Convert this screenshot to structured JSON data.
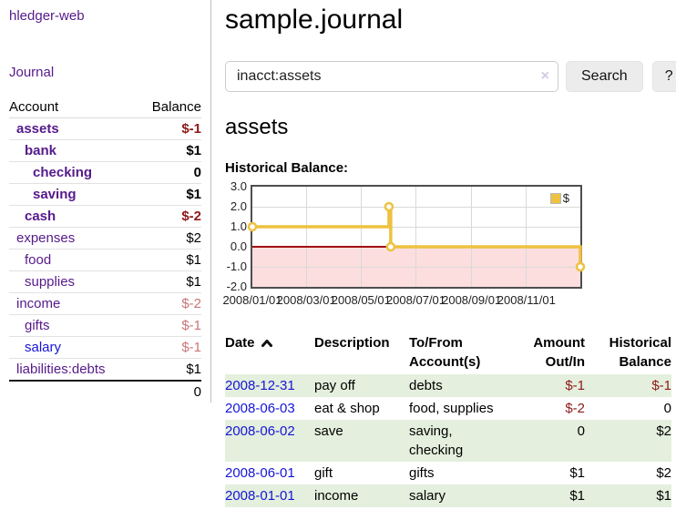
{
  "app": {
    "brand": "hledger-web",
    "nav_journal": "Journal"
  },
  "sidebar": {
    "table": {
      "col_account": "Account",
      "col_balance": "Balance"
    },
    "accounts": [
      {
        "name": "assets",
        "balance": "$-1",
        "depth": 1,
        "match": true,
        "balance_class": "neg-strong"
      },
      {
        "name": "bank",
        "balance": "$1",
        "depth": 2,
        "match": true,
        "balance_class": ""
      },
      {
        "name": "checking",
        "balance": "0",
        "depth": 3,
        "match": true,
        "balance_class": ""
      },
      {
        "name": "saving",
        "balance": "$1",
        "depth": 3,
        "match": true,
        "balance_class": ""
      },
      {
        "name": "cash",
        "balance": "$-2",
        "depth": 2,
        "match": true,
        "balance_class": "neg-strong"
      },
      {
        "name": "expenses",
        "balance": "$2",
        "depth": 1,
        "match": false,
        "balance_class": ""
      },
      {
        "name": "food",
        "balance": "$1",
        "depth": 2,
        "match": false,
        "balance_class": ""
      },
      {
        "name": "supplies",
        "balance": "$1",
        "depth": 2,
        "match": false,
        "balance_class": ""
      },
      {
        "name": "income",
        "balance": "$-2",
        "depth": 1,
        "match": false,
        "balance_class": "neg-soft"
      },
      {
        "name": "gifts",
        "balance": "$-1",
        "depth": 2,
        "match": false,
        "balance_class": "neg-soft"
      },
      {
        "name": "salary",
        "balance": "$-1",
        "depth": 2,
        "match": false,
        "balance_class": "neg-soft",
        "unvisited": true
      },
      {
        "name": "liabilities:debts",
        "balance": "$1",
        "depth": 1,
        "match": false,
        "balance_class": ""
      }
    ],
    "total": "0"
  },
  "main": {
    "title": "sample.journal",
    "search": {
      "value": "inacct:assets",
      "clear_label": "×",
      "button_label": "Search",
      "help_label": "?"
    },
    "account_heading": "assets",
    "chart_label": "Historical Balance:"
  },
  "chart_data": {
    "type": "line",
    "title": "Historical Balance:",
    "series": [
      {
        "name": "$",
        "color": "#edc240",
        "step": true,
        "points": [
          [
            "2008-01-01",
            1
          ],
          [
            "2008-06-01",
            2
          ],
          [
            "2008-06-03",
            0
          ],
          [
            "2008-12-31",
            -1
          ]
        ]
      }
    ],
    "x_ticks": [
      "2008/01/01",
      "2008/03/01",
      "2008/05/01",
      "2008/07/01",
      "2008/09/01",
      "2008/11/01"
    ],
    "y_ticks": [
      3,
      2,
      1,
      0,
      -1,
      -2
    ],
    "xlim": [
      "2008-01-01",
      "2008-12-31"
    ],
    "ylim": [
      -2,
      3
    ],
    "grid": true,
    "legend_position": "top-right",
    "negative_region_color": "#fcdede",
    "zero_line_color": "#a21010"
  },
  "register": {
    "headers": {
      "date": "Date",
      "description": "Description",
      "accounts": "To/From Account(s)",
      "amount": "Amount Out/In",
      "balance": "Historical Balance"
    },
    "sort": {
      "column": "date",
      "direction": "asc",
      "icon": "chevron-up-icon"
    },
    "rows": [
      {
        "date": "2008-12-31",
        "description": "pay off",
        "accounts": "debts",
        "amount": "$-1",
        "amount_class": "neg",
        "balance": "$-1",
        "balance_class": "neg"
      },
      {
        "date": "2008-06-03",
        "description": "eat & shop",
        "accounts": "food, supplies",
        "amount": "$-2",
        "amount_class": "neg",
        "balance": "0",
        "balance_class": ""
      },
      {
        "date": "2008-06-02",
        "description": "save",
        "accounts": "saving, checking",
        "amount": "0",
        "amount_class": "",
        "balance": "$2",
        "balance_class": ""
      },
      {
        "date": "2008-06-01",
        "description": "gift",
        "accounts": "gifts",
        "amount": "$1",
        "amount_class": "",
        "balance": "$2",
        "balance_class": ""
      },
      {
        "date": "2008-01-01",
        "description": "income",
        "accounts": "salary",
        "amount": "$1",
        "amount_class": "",
        "balance": "$1",
        "balance_class": ""
      }
    ]
  },
  "colors": {
    "link_purple": "#551a8b",
    "link_blue": "#1515d8",
    "negative_strong": "#8e1919",
    "negative_soft": "#c97575",
    "row_stripe_green": "#e4efdd",
    "chart_gold": "#edc240",
    "chart_negative_fill": "#fcdede",
    "chart_zero_line": "#a21010"
  }
}
